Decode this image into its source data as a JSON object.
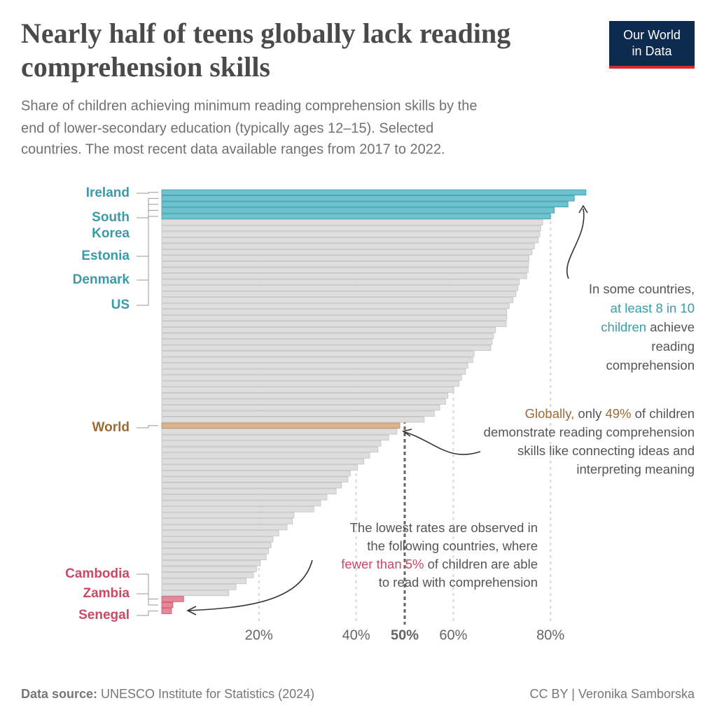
{
  "chart_data": {
    "type": "barh",
    "title": [
      "Nearly half of teens globally lack reading",
      "comprehension skills"
    ],
    "subtitle": [
      "Share of children achieving minimum reading comprehension skills by the",
      "end of lower-secondary education (typically ages 12–15). Selected",
      "countries. The most recent data available ranges from 2017 to 2022."
    ],
    "logo": [
      "Our World",
      "in Data"
    ],
    "categories": [
      "Ireland",
      "South Korea",
      "Estonia",
      "Denmark",
      "US",
      null,
      null,
      null,
      null,
      null,
      null,
      null,
      null,
      null,
      null,
      null,
      null,
      null,
      null,
      null,
      null,
      null,
      null,
      null,
      null,
      null,
      null,
      null,
      null,
      null,
      null,
      null,
      null,
      null,
      null,
      null,
      null,
      null,
      null,
      "World",
      null,
      null,
      null,
      null,
      null,
      null,
      null,
      null,
      null,
      null,
      null,
      null,
      null,
      null,
      null,
      null,
      null,
      null,
      null,
      null,
      null,
      null,
      null,
      null,
      null,
      null,
      null,
      null,
      "Cambodia",
      "Zambia",
      "Senegal"
    ],
    "values": [
      87.3,
      84.9,
      83.6,
      80.8,
      80.0,
      78.4,
      78.0,
      77.8,
      77.5,
      76.7,
      76.2,
      75.6,
      75.5,
      75.4,
      75.1,
      73.6,
      73.3,
      72.9,
      72.3,
      71.5,
      71.0,
      71.0,
      70.9,
      68.7,
      68.3,
      68.0,
      67.7,
      64.3,
      64.0,
      63.0,
      62.5,
      61.7,
      61.2,
      60.1,
      58.9,
      58.4,
      57.2,
      56.1,
      54.0,
      49,
      48.4,
      46.7,
      45.1,
      44.5,
      42.8,
      41.6,
      40.3,
      38.8,
      38.3,
      37.0,
      35.9,
      34.0,
      32.7,
      31.3,
      27.2,
      26.9,
      25.8,
      24.1,
      22.9,
      22.5,
      22.0,
      21.5,
      20.3,
      19.5,
      18.9,
      17.4,
      15.3,
      13.8,
      4.5,
      2.3,
      2.0
    ],
    "colors": [
      "t",
      "t",
      "t",
      "t",
      "t",
      "g",
      "g",
      "g",
      "g",
      "g",
      "g",
      "g",
      "g",
      "g",
      "g",
      "g",
      "g",
      "g",
      "g",
      "g",
      "g",
      "g",
      "g",
      "g",
      "g",
      "g",
      "g",
      "g",
      "g",
      "g",
      "g",
      "g",
      "g",
      "g",
      "g",
      "g",
      "g",
      "g",
      "g",
      "w",
      "g",
      "g",
      "g",
      "g",
      "g",
      "g",
      "g",
      "g",
      "g",
      "g",
      "g",
      "g",
      "g",
      "g",
      "g",
      "g",
      "g",
      "g",
      "g",
      "g",
      "g",
      "g",
      "g",
      "g",
      "g",
      "g",
      "g",
      "g",
      "r",
      "r",
      "r"
    ],
    "palette": {
      "t": {
        "fill": "#6cc3cd",
        "stroke": "#3a9ba8",
        "text": "#3a9ba8"
      },
      "g": {
        "fill": "#dedede",
        "stroke": "#c2c2c2",
        "text": "#555"
      },
      "w": {
        "fill": "#dbb48d",
        "stroke": "#b88a5c",
        "text": "#9c6b36"
      },
      "r": {
        "fill": "#e5899a",
        "stroke": "#c84a64",
        "text": "#c84a64"
      }
    },
    "xlim": [
      0,
      100
    ],
    "xticks": [
      {
        "value": 20,
        "label": "20%"
      },
      {
        "value": 40,
        "label": "40%"
      },
      {
        "value": 50,
        "label": "50%"
      },
      {
        "value": 60,
        "label": "60%"
      },
      {
        "value": 80,
        "label": "80%"
      }
    ],
    "grid": true,
    "annotations": [
      {
        "lines": [
          [
            {
              "text": "In some countries,"
            }
          ],
          [
            {
              "text": "at least 8 in 10",
              "color": "#3a9ba8"
            }
          ],
          [
            {
              "text": "children",
              "color": "#3a9ba8"
            },
            {
              "text": " achieve"
            }
          ],
          [
            {
              "text": "reading"
            }
          ],
          [
            {
              "text": "comprehension"
            }
          ]
        ]
      },
      {
        "lines": [
          [
            {
              "text": "Globally,",
              "color": "#9c6b36"
            },
            {
              "text": " only "
            },
            {
              "text": "49%",
              "color": "#9c6b36"
            },
            {
              "text": " of children"
            }
          ],
          [
            {
              "text": "demonstrate reading comprehension"
            }
          ],
          [
            {
              "text": "skills like connecting ideas and"
            }
          ],
          [
            {
              "text": "interpreting meaning"
            }
          ]
        ]
      },
      {
        "lines": [
          [
            {
              "text": "The lowest rates are observed in"
            }
          ],
          [
            {
              "text": "the following countries, where"
            }
          ],
          [
            {
              "text": "fewer than 5%",
              "color": "#c84a64"
            },
            {
              "text": " of children are able"
            }
          ],
          [
            {
              "text": "to read with comprehension"
            }
          ]
        ]
      }
    ],
    "source_label": "Data source:",
    "source": " UNESCO Institute for Statistics (2024)",
    "credit": "CC BY | Veronika Samborska"
  }
}
